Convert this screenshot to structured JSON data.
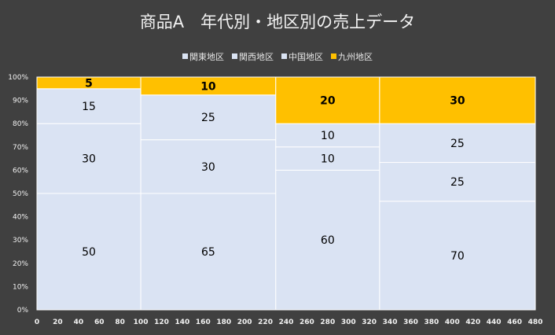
{
  "title": "商品A　年代別・地区別の売上データ",
  "chart_data": {
    "type": "bar",
    "subtype": "mekko (variable-width 100% stacked)",
    "title": "商品A　年代別・地区別の売上データ",
    "legend_position": "top",
    "series": [
      {
        "name": "関東地区",
        "color": "#dae3f3",
        "values": [
          50,
          65,
          60,
          70
        ]
      },
      {
        "name": "関西地区",
        "color": "#dae3f3",
        "values": [
          30,
          30,
          10,
          25
        ]
      },
      {
        "name": "中国地区",
        "color": "#dae3f3",
        "values": [
          15,
          25,
          10,
          25
        ]
      },
      {
        "name": "九州地区",
        "color": "#ffc000",
        "values": [
          5,
          10,
          20,
          30
        ]
      }
    ],
    "column_widths": [
      100,
      130,
      100,
      150
    ],
    "x_axis": {
      "min": 0,
      "max": 480,
      "step": 20
    },
    "y_axis": {
      "min": 0,
      "max": 1,
      "step": 0.1,
      "format": "percent"
    },
    "gridlines": false
  }
}
